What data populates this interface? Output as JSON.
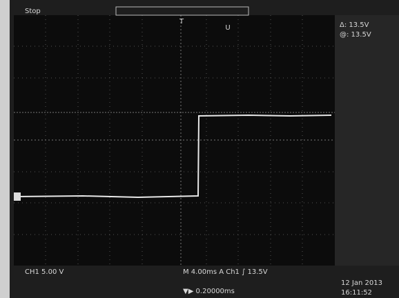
{
  "header": {
    "status": "Stop",
    "trigger_marker": "T",
    "cursor_marker": "U"
  },
  "cursors": {
    "delta": "Δ: 13.5V",
    "at": "@: 13.5V"
  },
  "footer": {
    "channel": "CH1 5.00 V",
    "timebase": "M 4.00ms A Ch1 ∫ 13.5V",
    "position": "▼▶ 0.20000ms",
    "date": "12 Jan 2013",
    "time": "16:11:52"
  }
}
